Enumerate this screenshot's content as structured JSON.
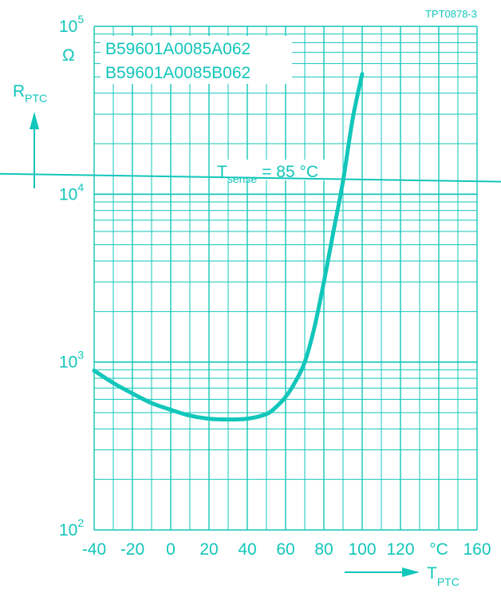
{
  "figure_id": "TPT0878-3",
  "part_numbers": [
    "B59601A0085A062",
    "B59601A0085B062"
  ],
  "colors": {
    "accent": "#12c6ba"
  },
  "y_axis": {
    "label_main": "R",
    "label_sub": "PTC",
    "unit": "Ω",
    "tick_base": "10",
    "tick_exponents": [
      "2",
      "3",
      "4",
      "5"
    ]
  },
  "x_axis": {
    "label_main": "T",
    "label_sub": "PTC",
    "unit": "°C",
    "tick_labels": [
      "-40",
      "-20",
      "0",
      "20",
      "40",
      "60",
      "80",
      "100",
      "120",
      "°C",
      "160"
    ]
  },
  "annotation": {
    "label_main": "T",
    "label_sub": "sense",
    "label_rest": "= 85 °C"
  },
  "chart_data": {
    "type": "line",
    "title": "",
    "xlabel": "T_PTC",
    "ylabel": "R_PTC",
    "x_unit": "°C",
    "y_unit": "Ω",
    "xlim": [
      -40,
      160
    ],
    "ylim": [
      100,
      100000
    ],
    "y_scale": "log",
    "grid": true,
    "series": [
      {
        "points": [
          [
            -40,
            890
          ],
          [
            -30,
            750
          ],
          [
            -20,
            650
          ],
          [
            -10,
            570
          ],
          [
            0,
            520
          ],
          [
            10,
            480
          ],
          [
            20,
            460
          ],
          [
            30,
            455
          ],
          [
            40,
            460
          ],
          [
            50,
            490
          ],
          [
            55,
            540
          ],
          [
            60,
            620
          ],
          [
            65,
            760
          ],
          [
            70,
            1000
          ],
          [
            75,
            1600
          ],
          [
            80,
            3000
          ],
          [
            85,
            6000
          ],
          [
            90,
            12000
          ],
          [
            95,
            28000
          ],
          [
            100,
            52000
          ]
        ]
      }
    ],
    "reference_line": {
      "label": "T_sense = 85 °C",
      "y_at_x_min": 12800,
      "y_at_x_max": 12000
    }
  }
}
